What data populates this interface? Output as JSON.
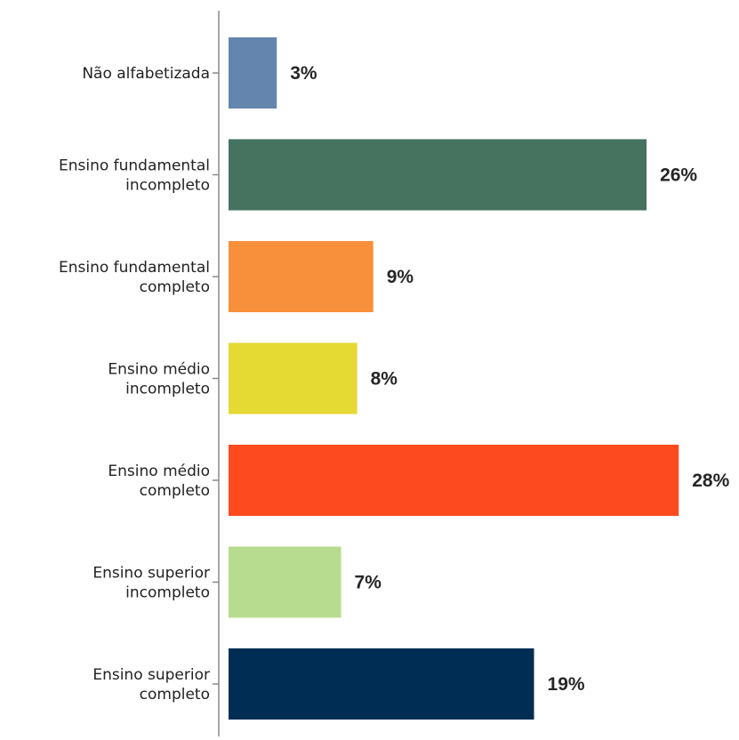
{
  "chart_data": {
    "type": "bar",
    "orientation": "horizontal",
    "categories": [
      [
        "Não alfabetizada"
      ],
      [
        "Ensino fundamental",
        "incompleto"
      ],
      [
        "Ensino fundamental",
        "completo"
      ],
      [
        "Ensino médio",
        "incompleto"
      ],
      [
        "Ensino médio",
        "completo"
      ],
      [
        "Ensino superior",
        "incompleto"
      ],
      [
        "Ensino superior",
        "completo"
      ]
    ],
    "values": [
      3,
      26,
      9,
      8,
      28,
      7,
      19
    ],
    "value_labels": [
      "3%",
      "26%",
      "9%",
      "8%",
      "28%",
      "7%",
      "19%"
    ],
    "colors": [
      "#6485ad",
      "#467360",
      "#f8903b",
      "#e5d934",
      "#fd4a1e",
      "#b8dc8f",
      "#002d53"
    ],
    "title": "",
    "xlabel": "",
    "ylabel": "",
    "grid": false,
    "legend": "none"
  }
}
